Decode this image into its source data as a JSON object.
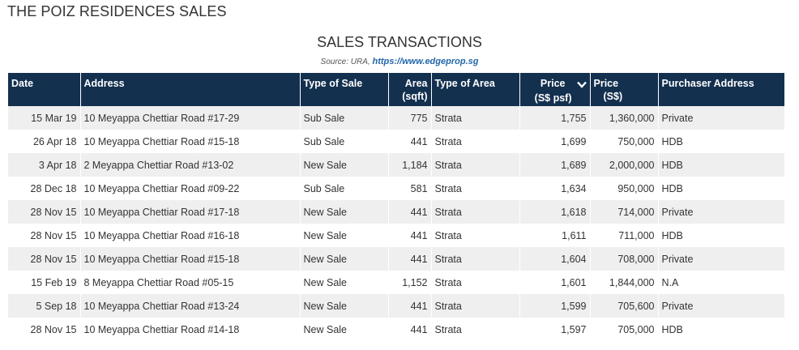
{
  "page": {
    "title": "THE POIZ RESIDENCES SALES"
  },
  "table": {
    "title": "SALES TRANSACTIONS",
    "source_prefix": "Source: URA,",
    "source_link": "https://www.edgeprop.sg",
    "columns": {
      "date": "Date",
      "address": "Address",
      "type_of_sale": "Type of Sale",
      "area_l1": "Area",
      "area_l2": "(sqft)",
      "type_of_area": "Type of Area",
      "price_psf_l1": "Price",
      "price_psf_l2": "(S$ psf)",
      "price_l1": "Price",
      "price_l2": "(S$)",
      "purchaser": "Purchaser Address"
    },
    "sort_icon": "chevron-down-icon",
    "header_color": "#14304f",
    "rows": [
      {
        "date": "15 Mar 19",
        "address": "10 Meyappa Chettiar Road #17-29",
        "sale": "Sub Sale",
        "area": "775",
        "area_type": "Strata",
        "psf": "1,755",
        "price": "1,360,000",
        "purchaser": "Private"
      },
      {
        "date": "26 Apr 18",
        "address": "10 Meyappa Chettiar Road #15-18",
        "sale": "Sub Sale",
        "area": "441",
        "area_type": "Strata",
        "psf": "1,699",
        "price": "750,000",
        "purchaser": "HDB"
      },
      {
        "date": "3 Apr 18",
        "address": "2 Meyappa Chettiar Road #13-02",
        "sale": "New Sale",
        "area": "1,184",
        "area_type": "Strata",
        "psf": "1,689",
        "price": "2,000,000",
        "purchaser": "HDB"
      },
      {
        "date": "28 Dec 18",
        "address": "10 Meyappa Chettiar Road #09-22",
        "sale": "Sub Sale",
        "area": "581",
        "area_type": "Strata",
        "psf": "1,634",
        "price": "950,000",
        "purchaser": "HDB"
      },
      {
        "date": "28 Nov 15",
        "address": "10 Meyappa Chettiar Road #17-18",
        "sale": "New Sale",
        "area": "441",
        "area_type": "Strata",
        "psf": "1,618",
        "price": "714,000",
        "purchaser": "Private"
      },
      {
        "date": "28 Nov 15",
        "address": "10 Meyappa Chettiar Road #16-18",
        "sale": "New Sale",
        "area": "441",
        "area_type": "Strata",
        "psf": "1,611",
        "price": "711,000",
        "purchaser": "HDB"
      },
      {
        "date": "28 Nov 15",
        "address": "10 Meyappa Chettiar Road #15-18",
        "sale": "New Sale",
        "area": "441",
        "area_type": "Strata",
        "psf": "1,604",
        "price": "708,000",
        "purchaser": "Private"
      },
      {
        "date": "15 Feb 19",
        "address": "8 Meyappa Chettiar Road #05-15",
        "sale": "New Sale",
        "area": "1,152",
        "area_type": "Strata",
        "psf": "1,601",
        "price": "1,844,000",
        "purchaser": "N.A"
      },
      {
        "date": "5 Sep 18",
        "address": "10 Meyappa Chettiar Road #13-24",
        "sale": "New Sale",
        "area": "441",
        "area_type": "Strata",
        "psf": "1,599",
        "price": "705,600",
        "purchaser": "Private"
      },
      {
        "date": "28 Nov 15",
        "address": "10 Meyappa Chettiar Road #14-18",
        "sale": "New Sale",
        "area": "441",
        "area_type": "Strata",
        "psf": "1,597",
        "price": "705,000",
        "purchaser": "HDB"
      }
    ]
  }
}
